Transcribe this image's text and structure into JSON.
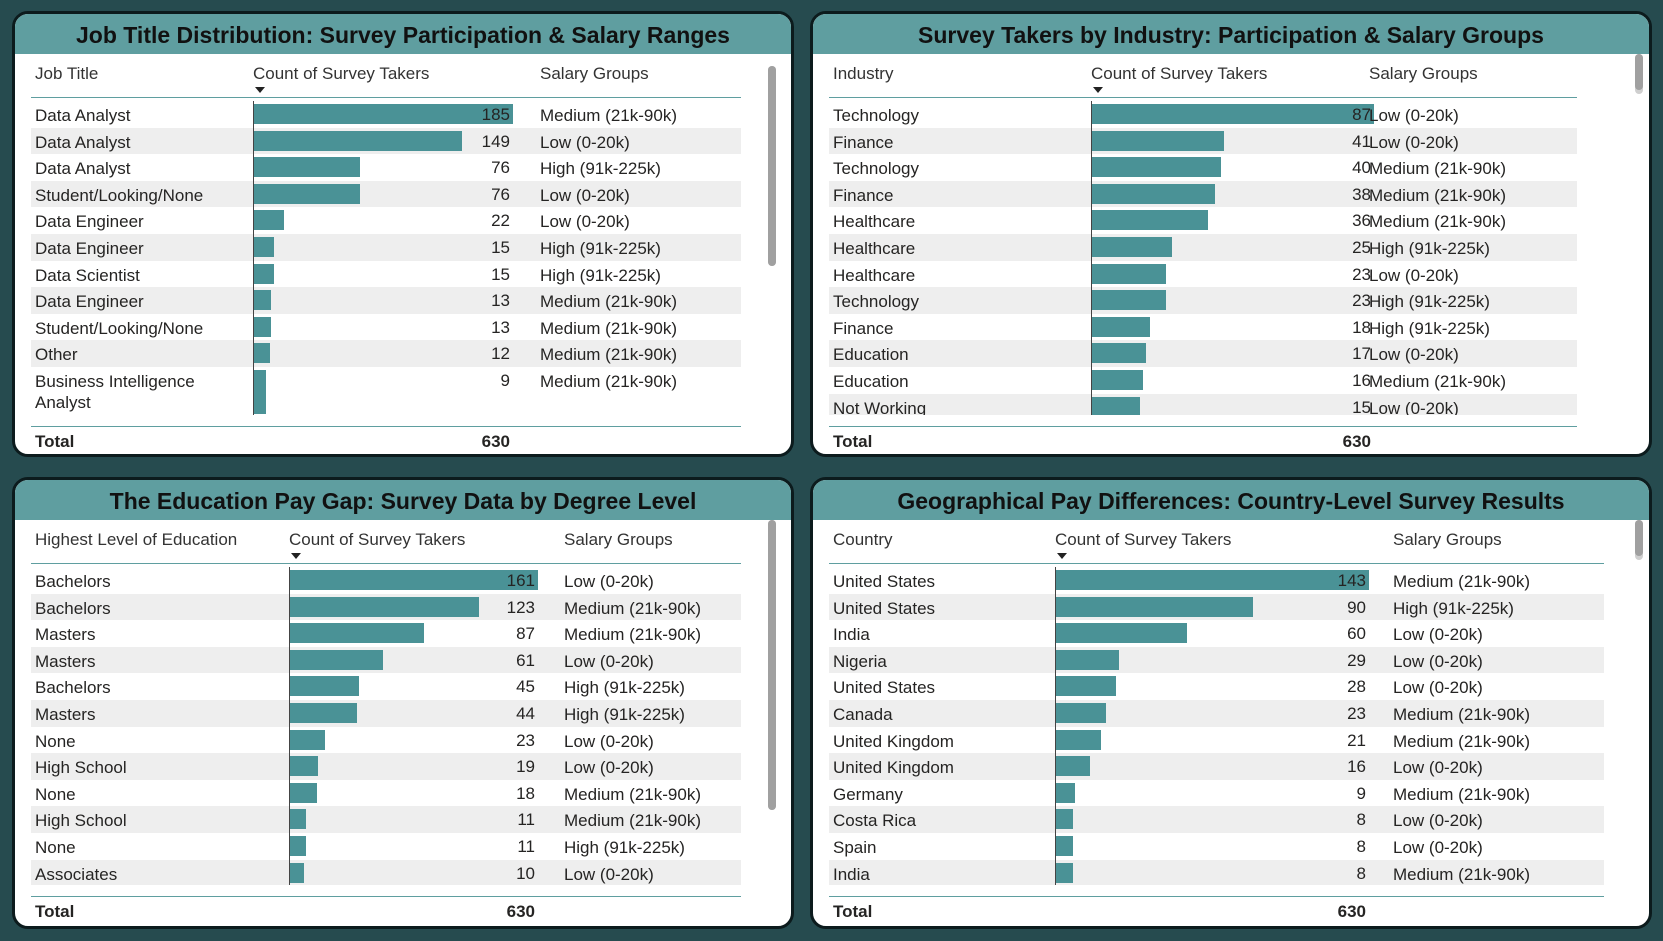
{
  "panels": [
    {
      "title": "Job Title Distribution: Survey Participation & Salary Ranges",
      "columns": [
        "Job Title",
        "Count of Survey Takers",
        "Salary Groups"
      ],
      "total_label": "Total",
      "total_value": "630"
    },
    {
      "title": "Survey Takers by Industry: Participation & Salary Groups",
      "columns": [
        "Industry",
        "Count of Survey Takers",
        "Salary Groups"
      ],
      "total_label": "Total",
      "total_value": "630"
    },
    {
      "title": "The Education Pay Gap: Survey Data by Degree Level",
      "columns": [
        "Highest Level of Education",
        "Count of Survey Takers",
        "Salary Groups"
      ],
      "total_label": "Total",
      "total_value": "630"
    },
    {
      "title": "Geographical Pay Differences: Country-Level Survey Results",
      "columns": [
        "Country",
        "Count of Survey Takers",
        "Salary Groups"
      ],
      "total_label": "Total",
      "total_value": "630"
    }
  ],
  "chart_data": [
    {
      "type": "table",
      "title": "Job Title Distribution: Survey Participation & Salary Ranges",
      "sort": "Count of Survey Takers descending",
      "rows": [
        {
          "label": "Data Analyst",
          "value": 185,
          "group": "Medium (21k-90k)"
        },
        {
          "label": "Data Analyst",
          "value": 149,
          "group": "Low (0-20k)"
        },
        {
          "label": "Data Analyst",
          "value": 76,
          "group": "High (91k-225k)"
        },
        {
          "label": "Student/Looking/None",
          "value": 76,
          "group": "Low (0-20k)"
        },
        {
          "label": "Data Engineer",
          "value": 22,
          "group": "Low (0-20k)"
        },
        {
          "label": "Data Engineer",
          "value": 15,
          "group": "High (91k-225k)"
        },
        {
          "label": "Data Scientist",
          "value": 15,
          "group": "High (91k-225k)"
        },
        {
          "label": "Data Engineer",
          "value": 13,
          "group": "Medium (21k-90k)"
        },
        {
          "label": "Student/Looking/None",
          "value": 13,
          "group": "Medium (21k-90k)"
        },
        {
          "label": "Other",
          "value": 12,
          "group": "Medium (21k-90k)"
        },
        {
          "label": "Business Intelligence Analyst",
          "value": 9,
          "group": "Medium (21k-90k)"
        }
      ],
      "total": 630
    },
    {
      "type": "table",
      "title": "Survey Takers by Industry: Participation & Salary Groups",
      "sort": "Count of Survey Takers descending",
      "rows": [
        {
          "label": "Technology",
          "value": 87,
          "group": "Low (0-20k)"
        },
        {
          "label": "Finance",
          "value": 41,
          "group": "Low (0-20k)"
        },
        {
          "label": "Technology",
          "value": 40,
          "group": "Medium (21k-90k)"
        },
        {
          "label": "Finance",
          "value": 38,
          "group": "Medium (21k-90k)"
        },
        {
          "label": "Healthcare",
          "value": 36,
          "group": "Medium (21k-90k)"
        },
        {
          "label": "Healthcare",
          "value": 25,
          "group": "High (91k-225k)"
        },
        {
          "label": "Healthcare",
          "value": 23,
          "group": "Low (0-20k)"
        },
        {
          "label": "Technology",
          "value": 23,
          "group": "High (91k-225k)"
        },
        {
          "label": "Finance",
          "value": 18,
          "group": "High (91k-225k)"
        },
        {
          "label": "Education",
          "value": 17,
          "group": "Low (0-20k)"
        },
        {
          "label": "Education",
          "value": 16,
          "group": "Medium (21k-90k)"
        },
        {
          "label": "Not Working",
          "value": 15,
          "group": "Low (0-20k)"
        }
      ],
      "total": 630
    },
    {
      "type": "table",
      "title": "The Education Pay Gap: Survey Data by Degree Level",
      "sort": "Count of Survey Takers descending",
      "rows": [
        {
          "label": "Bachelors",
          "value": 161,
          "group": "Low (0-20k)"
        },
        {
          "label": "Bachelors",
          "value": 123,
          "group": "Medium (21k-90k)"
        },
        {
          "label": "Masters",
          "value": 87,
          "group": "Medium (21k-90k)"
        },
        {
          "label": "Masters",
          "value": 61,
          "group": "Low (0-20k)"
        },
        {
          "label": "Bachelors",
          "value": 45,
          "group": "High (91k-225k)"
        },
        {
          "label": "Masters",
          "value": 44,
          "group": "High (91k-225k)"
        },
        {
          "label": "None",
          "value": 23,
          "group": "Low (0-20k)"
        },
        {
          "label": "High School",
          "value": 19,
          "group": "Low (0-20k)"
        },
        {
          "label": "None",
          "value": 18,
          "group": "Medium (21k-90k)"
        },
        {
          "label": "High School",
          "value": 11,
          "group": "Medium (21k-90k)"
        },
        {
          "label": "None",
          "value": 11,
          "group": "High (91k-225k)"
        },
        {
          "label": "Associates",
          "value": 10,
          "group": "Low (0-20k)"
        }
      ],
      "total": 630
    },
    {
      "type": "table",
      "title": "Geographical Pay Differences: Country-Level Survey Results",
      "sort": "Count of Survey Takers descending",
      "rows": [
        {
          "label": "United States",
          "value": 143,
          "group": "Medium (21k-90k)"
        },
        {
          "label": "United States",
          "value": 90,
          "group": "High (91k-225k)"
        },
        {
          "label": "India",
          "value": 60,
          "group": "Low (0-20k)"
        },
        {
          "label": "Nigeria",
          "value": 29,
          "group": "Low (0-20k)"
        },
        {
          "label": "United States",
          "value": 28,
          "group": "Low (0-20k)"
        },
        {
          "label": "Canada",
          "value": 23,
          "group": "Medium (21k-90k)"
        },
        {
          "label": "United Kingdom",
          "value": 21,
          "group": "Medium (21k-90k)"
        },
        {
          "label": "United Kingdom",
          "value": 16,
          "group": "Low (0-20k)"
        },
        {
          "label": "Germany",
          "value": 9,
          "group": "Medium (21k-90k)"
        },
        {
          "label": "Costa Rica",
          "value": 8,
          "group": "Low (0-20k)"
        },
        {
          "label": "Spain",
          "value": 8,
          "group": "Low (0-20k)"
        },
        {
          "label": "India",
          "value": 8,
          "group": "Medium (21k-90k)"
        }
      ],
      "total": 630
    }
  ],
  "colors": {
    "background": "#264b4f",
    "title_bar": "#5f9ea0",
    "bar": "#4a9296",
    "row_alt": "#eeeeee"
  },
  "icons": {
    "sort": "sort-descending-icon"
  }
}
